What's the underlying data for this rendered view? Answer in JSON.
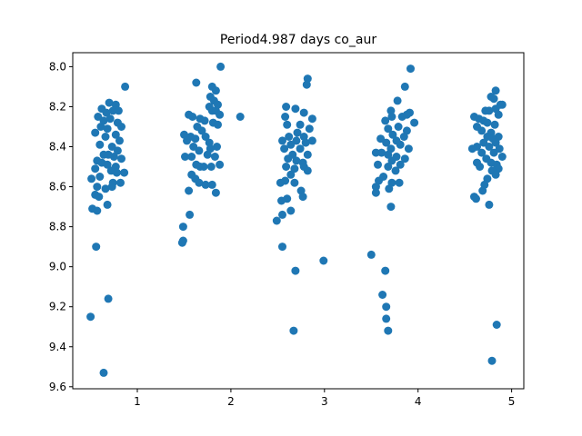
{
  "chart_data": {
    "type": "scatter",
    "title": "Period4.987 days co_aur",
    "xlabel": "",
    "ylabel": "",
    "xlim": [
      0.31,
      5.13
    ],
    "ylim": [
      9.61,
      7.93
    ],
    "y_inverted": true,
    "x_ticks": [
      1,
      2,
      3,
      4,
      5
    ],
    "x_tick_labels": [
      "1",
      "2",
      "3",
      "4",
      "5"
    ],
    "y_ticks": [
      8.0,
      8.2,
      8.4,
      8.6,
      8.8,
      9.0,
      9.2,
      9.4,
      9.6
    ],
    "y_tick_labels": [
      "8.0",
      "8.2",
      "8.4",
      "8.6",
      "8.8",
      "9.0",
      "9.2",
      "9.4",
      "9.6"
    ],
    "grid": false,
    "marker_color": "#1f77b4",
    "series": [
      {
        "points": [
          [
            0.87,
            8.1
          ],
          [
            0.7,
            8.18
          ],
          [
            0.77,
            8.19
          ],
          [
            0.62,
            8.21
          ],
          [
            0.67,
            8.23
          ],
          [
            0.74,
            8.22
          ],
          [
            0.8,
            8.22
          ],
          [
            0.58,
            8.25
          ],
          [
            0.64,
            8.27
          ],
          [
            0.71,
            8.26
          ],
          [
            0.79,
            8.28
          ],
          [
            0.83,
            8.3
          ],
          [
            0.61,
            8.3
          ],
          [
            0.68,
            8.31
          ],
          [
            0.55,
            8.33
          ],
          [
            0.77,
            8.34
          ],
          [
            0.66,
            8.35
          ],
          [
            0.81,
            8.37
          ],
          [
            0.6,
            8.39
          ],
          [
            0.73,
            8.4
          ],
          [
            0.79,
            8.42
          ],
          [
            0.64,
            8.44
          ],
          [
            0.69,
            8.44
          ],
          [
            0.75,
            8.45
          ],
          [
            0.83,
            8.46
          ],
          [
            0.57,
            8.47
          ],
          [
            0.62,
            8.48
          ],
          [
            0.68,
            8.49
          ],
          [
            0.77,
            8.5
          ],
          [
            0.55,
            8.51
          ],
          [
            0.86,
            8.53
          ],
          [
            0.72,
            8.52
          ],
          [
            0.78,
            8.53
          ],
          [
            0.6,
            8.55
          ],
          [
            0.51,
            8.56
          ],
          [
            0.74,
            8.58
          ],
          [
            0.82,
            8.58
          ],
          [
            0.57,
            8.6
          ],
          [
            0.66,
            8.61
          ],
          [
            0.73,
            8.6
          ],
          [
            0.55,
            8.64
          ],
          [
            0.59,
            8.65
          ],
          [
            0.68,
            8.69
          ],
          [
            0.52,
            8.71
          ],
          [
            0.57,
            8.72
          ],
          [
            0.56,
            8.9
          ],
          [
            0.69,
            9.16
          ],
          [
            0.5,
            9.25
          ],
          [
            0.64,
            9.53
          ]
        ]
      },
      {
        "points": [
          [
            1.89,
            8.0
          ],
          [
            1.63,
            8.08
          ],
          [
            1.8,
            8.1
          ],
          [
            1.84,
            8.12
          ],
          [
            1.78,
            8.15
          ],
          [
            1.82,
            8.17
          ],
          [
            1.86,
            8.19
          ],
          [
            1.77,
            8.2
          ],
          [
            1.8,
            8.22
          ],
          [
            1.84,
            8.22
          ],
          [
            1.55,
            8.24
          ],
          [
            1.59,
            8.25
          ],
          [
            1.67,
            8.26
          ],
          [
            1.88,
            8.24
          ],
          [
            2.1,
            8.25
          ],
          [
            1.72,
            8.27
          ],
          [
            1.81,
            8.28
          ],
          [
            1.86,
            8.29
          ],
          [
            1.64,
            8.3
          ],
          [
            1.69,
            8.32
          ],
          [
            1.5,
            8.34
          ],
          [
            1.57,
            8.35
          ],
          [
            1.62,
            8.36
          ],
          [
            1.73,
            8.35
          ],
          [
            1.53,
            8.37
          ],
          [
            1.77,
            8.38
          ],
          [
            1.6,
            8.4
          ],
          [
            1.85,
            8.4
          ],
          [
            1.78,
            8.41
          ],
          [
            1.66,
            8.42
          ],
          [
            1.51,
            8.45
          ],
          [
            1.58,
            8.45
          ],
          [
            1.75,
            8.44
          ],
          [
            1.83,
            8.45
          ],
          [
            1.63,
            8.49
          ],
          [
            1.67,
            8.5
          ],
          [
            1.71,
            8.5
          ],
          [
            1.79,
            8.5
          ],
          [
            1.88,
            8.49
          ],
          [
            1.58,
            8.54
          ],
          [
            1.62,
            8.56
          ],
          [
            1.66,
            8.58
          ],
          [
            1.73,
            8.59
          ],
          [
            1.8,
            8.59
          ],
          [
            1.55,
            8.62
          ],
          [
            1.84,
            8.63
          ],
          [
            1.56,
            8.74
          ],
          [
            1.49,
            8.8
          ],
          [
            1.49,
            8.87
          ],
          [
            1.48,
            8.88
          ]
        ]
      },
      {
        "points": [
          [
            2.82,
            8.06
          ],
          [
            2.81,
            8.09
          ],
          [
            2.59,
            8.2
          ],
          [
            2.69,
            8.21
          ],
          [
            2.78,
            8.23
          ],
          [
            2.87,
            8.26
          ],
          [
            2.58,
            8.25
          ],
          [
            2.6,
            8.29
          ],
          [
            2.74,
            8.29
          ],
          [
            2.84,
            8.31
          ],
          [
            2.71,
            8.33
          ],
          [
            2.62,
            8.35
          ],
          [
            2.78,
            8.35
          ],
          [
            2.87,
            8.37
          ],
          [
            2.55,
            8.37
          ],
          [
            2.7,
            8.37
          ],
          [
            2.8,
            8.38
          ],
          [
            2.64,
            8.39
          ],
          [
            2.57,
            8.41
          ],
          [
            2.74,
            8.41
          ],
          [
            2.82,
            8.44
          ],
          [
            2.66,
            8.44
          ],
          [
            2.61,
            8.46
          ],
          [
            2.7,
            8.47
          ],
          [
            2.77,
            8.48
          ],
          [
            2.59,
            8.5
          ],
          [
            2.68,
            8.51
          ],
          [
            2.78,
            8.5
          ],
          [
            2.82,
            8.52
          ],
          [
            2.64,
            8.54
          ],
          [
            2.58,
            8.57
          ],
          [
            2.53,
            8.58
          ],
          [
            2.68,
            8.58
          ],
          [
            2.75,
            8.62
          ],
          [
            2.77,
            8.65
          ],
          [
            2.6,
            8.66
          ],
          [
            2.54,
            8.67
          ],
          [
            2.64,
            8.72
          ],
          [
            2.55,
            8.74
          ],
          [
            2.49,
            8.77
          ],
          [
            2.55,
            8.9
          ],
          [
            2.99,
            8.97
          ],
          [
            2.69,
            9.02
          ],
          [
            2.67,
            9.32
          ]
        ]
      },
      {
        "points": [
          [
            3.92,
            8.01
          ],
          [
            3.86,
            8.1
          ],
          [
            3.78,
            8.17
          ],
          [
            3.71,
            8.22
          ],
          [
            3.91,
            8.23
          ],
          [
            3.72,
            8.25
          ],
          [
            3.83,
            8.25
          ],
          [
            3.88,
            8.24
          ],
          [
            3.65,
            8.27
          ],
          [
            3.96,
            8.28
          ],
          [
            3.79,
            8.3
          ],
          [
            3.68,
            8.31
          ],
          [
            3.88,
            8.32
          ],
          [
            3.73,
            8.34
          ],
          [
            3.85,
            8.35
          ],
          [
            3.6,
            8.36
          ],
          [
            3.77,
            8.37
          ],
          [
            3.66,
            8.38
          ],
          [
            3.81,
            8.39
          ],
          [
            3.9,
            8.41
          ],
          [
            3.71,
            8.41
          ],
          [
            3.55,
            8.43
          ],
          [
            3.61,
            8.43
          ],
          [
            3.68,
            8.44
          ],
          [
            3.77,
            8.45
          ],
          [
            3.86,
            8.46
          ],
          [
            3.72,
            8.47
          ],
          [
            3.57,
            8.49
          ],
          [
            3.81,
            8.49
          ],
          [
            3.68,
            8.5
          ],
          [
            3.76,
            8.52
          ],
          [
            3.63,
            8.55
          ],
          [
            3.58,
            8.57
          ],
          [
            3.72,
            8.58
          ],
          [
            3.8,
            8.58
          ],
          [
            3.55,
            8.6
          ],
          [
            3.69,
            8.61
          ],
          [
            3.55,
            8.63
          ],
          [
            3.71,
            8.7
          ],
          [
            3.5,
            8.94
          ],
          [
            3.65,
            9.02
          ],
          [
            3.62,
            9.14
          ],
          [
            3.66,
            9.2
          ],
          [
            3.66,
            9.26
          ],
          [
            3.68,
            9.32
          ]
        ]
      },
      {
        "points": [
          [
            4.83,
            8.12
          ],
          [
            4.78,
            8.15
          ],
          [
            4.81,
            8.16
          ],
          [
            4.88,
            8.19
          ],
          [
            4.9,
            8.19
          ],
          [
            4.72,
            8.22
          ],
          [
            4.76,
            8.22
          ],
          [
            4.83,
            8.21
          ],
          [
            4.86,
            8.24
          ],
          [
            4.6,
            8.25
          ],
          [
            4.65,
            8.26
          ],
          [
            4.7,
            8.27
          ],
          [
            4.74,
            8.28
          ],
          [
            4.82,
            8.29
          ],
          [
            4.63,
            8.3
          ],
          [
            4.68,
            8.32
          ],
          [
            4.78,
            8.33
          ],
          [
            4.86,
            8.35
          ],
          [
            4.74,
            8.35
          ],
          [
            4.8,
            8.36
          ],
          [
            4.7,
            8.38
          ],
          [
            4.83,
            8.38
          ],
          [
            4.63,
            8.4
          ],
          [
            4.58,
            8.41
          ],
          [
            4.76,
            8.4
          ],
          [
            4.87,
            8.41
          ],
          [
            4.68,
            8.43
          ],
          [
            4.81,
            8.43
          ],
          [
            4.9,
            8.45
          ],
          [
            4.73,
            8.46
          ],
          [
            4.63,
            8.48
          ],
          [
            4.78,
            8.48
          ],
          [
            4.84,
            8.49
          ],
          [
            4.66,
            8.5
          ],
          [
            4.86,
            8.51
          ],
          [
            4.79,
            8.52
          ],
          [
            4.83,
            8.54
          ],
          [
            4.74,
            8.56
          ],
          [
            4.71,
            8.59
          ],
          [
            4.69,
            8.62
          ],
          [
            4.6,
            8.65
          ],
          [
            4.62,
            8.66
          ],
          [
            4.76,
            8.69
          ],
          [
            4.84,
            9.29
          ],
          [
            4.79,
            9.47
          ]
        ]
      }
    ]
  }
}
